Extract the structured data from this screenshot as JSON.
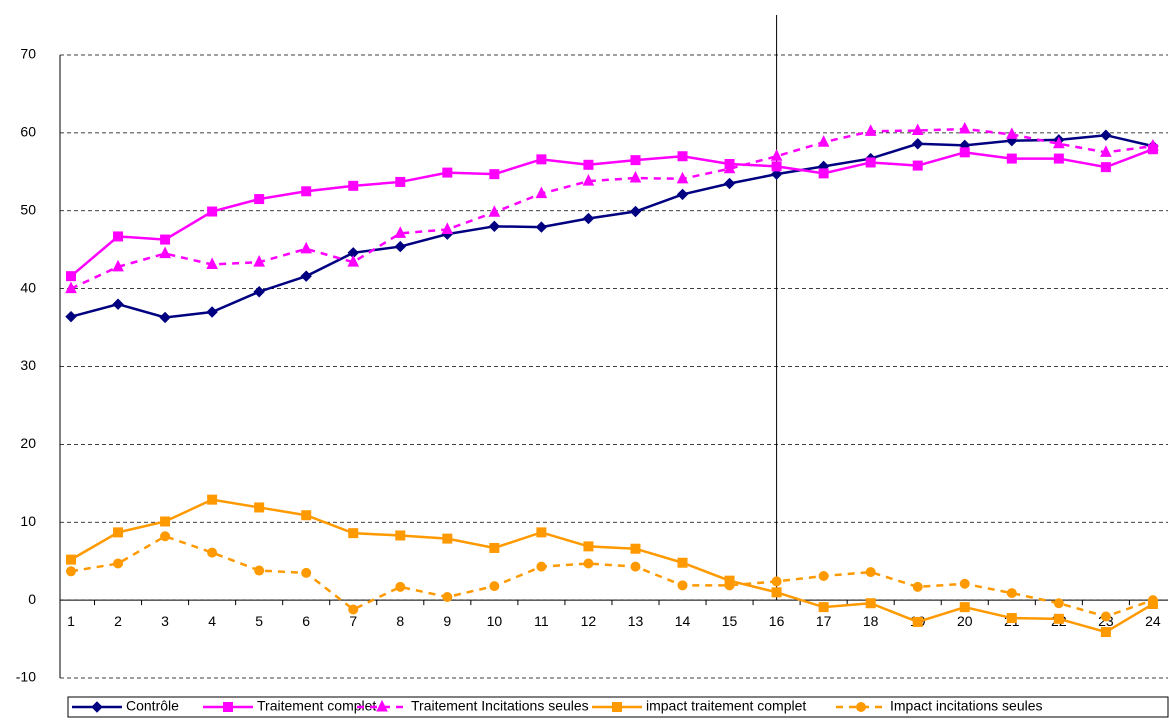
{
  "chart_data": {
    "type": "line",
    "categories": [
      "1",
      "2",
      "3",
      "4",
      "5",
      "6",
      "7",
      "8",
      "9",
      "10",
      "11",
      "12",
      "13",
      "14",
      "15",
      "16",
      "17",
      "18",
      "19",
      "20",
      "21",
      "22",
      "23",
      "24"
    ],
    "ylim": [
      -10,
      70
    ],
    "yticks": [
      -10,
      0,
      10,
      20,
      30,
      40,
      50,
      60,
      70
    ],
    "grid": true,
    "vline_category": 16,
    "legend": "bottom",
    "series": [
      {
        "name": "Contrôle",
        "color": "#000080",
        "marker": "diamond",
        "dash": false,
        "values": [
          36.4,
          38.0,
          36.3,
          37.0,
          39.6,
          41.6,
          44.6,
          45.4,
          47.0,
          48.0,
          47.9,
          49.0,
          49.9,
          52.1,
          53.5,
          54.7,
          55.7,
          56.7,
          58.6,
          58.4,
          59.0,
          59.1,
          59.7,
          58.3
        ]
      },
      {
        "name": "Traitement complet",
        "color": "#ff00ff",
        "marker": "square",
        "dash": false,
        "values": [
          41.6,
          46.7,
          46.3,
          49.9,
          51.5,
          52.5,
          53.2,
          53.7,
          54.9,
          54.7,
          56.6,
          55.9,
          56.5,
          57.0,
          56.0,
          55.7,
          54.8,
          56.2,
          55.8,
          57.5,
          56.7,
          56.7,
          55.6,
          57.9
        ]
      },
      {
        "name": "Traitement Incitations seules",
        "color": "#ff00ff",
        "marker": "triangle",
        "dash": true,
        "values": [
          40.0,
          42.8,
          44.5,
          43.1,
          43.4,
          45.1,
          43.4,
          47.1,
          47.6,
          49.8,
          52.2,
          53.8,
          54.2,
          54.1,
          55.4,
          57.0,
          58.8,
          60.2,
          60.3,
          60.5,
          59.8,
          58.6,
          57.5,
          58.3
        ]
      },
      {
        "name": "impact traitement complet",
        "color": "#ff9900",
        "marker": "square",
        "dash": false,
        "values": [
          5.2,
          8.7,
          10.1,
          12.9,
          11.9,
          10.9,
          8.6,
          8.3,
          7.9,
          6.7,
          8.7,
          6.9,
          6.6,
          4.8,
          2.5,
          1.0,
          -0.9,
          -0.4,
          -2.8,
          -0.9,
          -2.3,
          -2.4,
          -4.1,
          -0.5
        ]
      },
      {
        "name": "Impact incitations seules",
        "color": "#ff9900",
        "marker": "circle",
        "dash": true,
        "values": [
          3.7,
          4.7,
          8.2,
          6.1,
          3.8,
          3.5,
          -1.2,
          1.7,
          0.4,
          1.8,
          4.3,
          4.7,
          4.3,
          1.9,
          1.9,
          2.4,
          3.1,
          3.6,
          1.7,
          2.1,
          0.9,
          -0.4,
          -2.1,
          0.0
        ]
      }
    ]
  }
}
